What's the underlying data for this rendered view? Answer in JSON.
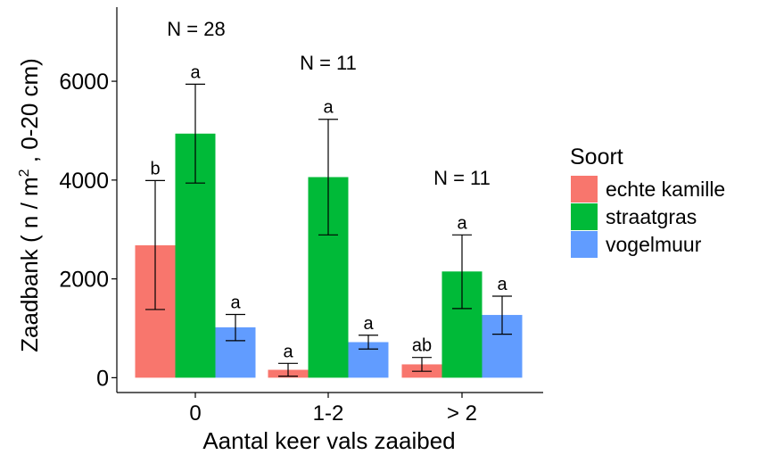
{
  "chart_data": {
    "type": "bar",
    "categories": [
      "0",
      "1-2",
      "> 2"
    ],
    "xlabel": "Aantal keer vals zaaibed",
    "ylabel": {
      "pre": "Zaadbank ( n / m",
      "sup": "2",
      "post": " , 0-20 cm)"
    },
    "ylim": [
      -300,
      7500
    ],
    "yticks": [
      0,
      2000,
      4000,
      6000
    ],
    "group_labels": [
      "N = 28",
      "N = 11",
      "N = 11"
    ],
    "legend": {
      "title": "Soort",
      "position": "right"
    },
    "series": [
      {
        "name": "echte kamille",
        "color": "#F8766D",
        "values": [
          2680,
          160,
          270
        ],
        "err_low": [
          1380,
          30,
          130
        ],
        "err_high": [
          3990,
          290,
          410
        ],
        "letters": [
          "b",
          "a",
          "ab"
        ]
      },
      {
        "name": "straatgras",
        "color": "#00BA38",
        "values": [
          4940,
          4060,
          2150
        ],
        "err_low": [
          3940,
          2890,
          1400
        ],
        "err_high": [
          5940,
          5230,
          2890
        ],
        "letters": [
          "a",
          "a",
          "a"
        ]
      },
      {
        "name": "vogelmuur",
        "color": "#619CFF",
        "values": [
          1020,
          720,
          1270
        ],
        "err_low": [
          750,
          580,
          880
        ],
        "err_high": [
          1280,
          860,
          1650
        ],
        "letters": [
          "a",
          "a",
          "a"
        ]
      }
    ]
  }
}
